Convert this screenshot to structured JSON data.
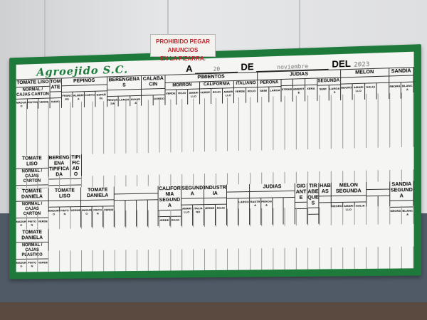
{
  "sign": {
    "line1": "PROHIBIDO PEGAR ANUNCIOS",
    "line2": "EN LA PIZARRA."
  },
  "board": {
    "brand": "Agroejido S.C.",
    "date": {
      "a": "A",
      "day": "20",
      "de": "DE",
      "month": "noviembre",
      "del": "DEL",
      "year": "2023"
    },
    "frame_color": "#1d7a3a",
    "top_header": [
      {
        "label": "TOMATE LISO",
        "cols": [
          {
            "label": "NORMAL / CAJAS CARTON",
            "sub": [
              "MADURO",
              "PINTON",
              "VERDE"
            ]
          }
        ]
      },
      {
        "label": "TOMATE",
        "cols": [
          {
            "label": "",
            "sub": [
              "RAMO"
            ]
          }
        ]
      },
      {
        "label": "PEPINOS",
        "cols": [
          {
            "label": "",
            "sub": [
              "FRANCES",
              "ALMERIA",
              "CORTO",
              "ESPAÑOL"
            ]
          }
        ]
      },
      {
        "label": "BERENGENAS",
        "cols": [
          {
            "label": "",
            "sub": [
              "REDONDA",
              "LARGA",
              "RAYADA"
            ]
          }
        ]
      },
      {
        "label": "CALABACIN",
        "cols": [
          {
            "label": "",
            "sub": [
              "",
              "GORDO"
            ]
          }
        ]
      },
      {
        "label": "PIMIENTOS",
        "cols": [
          {
            "label": "MORRON",
            "sub": [
              "VERDE",
              "ROJO",
              "AMARILLO"
            ]
          },
          {
            "label": "CALIFORNIA",
            "sub": [
              "VERDE",
              "ROJO",
              "AMARILLO"
            ]
          },
          {
            "label": "ITALIANO",
            "sub": [
              "VERDE",
              "ROJO"
            ]
          }
        ]
      },
      {
        "label": "JUDIAS",
        "cols": [
          {
            "label": "PERONA",
            "sub": [
              "SEMI",
              "LARGA"
            ]
          },
          {
            "label": "",
            "sub": [
              "STRIKE"
            ]
          },
          {
            "label": "",
            "sub": [
              "EMERITE"
            ]
          },
          {
            "label": "",
            "sub": [
              "XERA"
            ]
          },
          {
            "label": "SEGUNDA",
            "sub": [
              "SEMI",
              "LARGAS"
            ]
          }
        ]
      },
      {
        "label": "MELON",
        "cols": [
          {
            "label": "",
            "sub": [
              "NEGRO",
              "AMARILLO",
              "GALIA",
              ""
            ]
          }
        ]
      },
      {
        "label": "SANDIA",
        "cols": [
          {
            "label": "",
            "sub": [
              "NEGRA",
              "BLANCA"
            ]
          }
        ]
      }
    ],
    "mid_header": [
      {
        "label": "TOMATE LISO",
        "cols": [
          {
            "label": "NORMAL / CAJAS CARTON",
            "sub": [
              "MADURO",
              "PINTON",
              "VERDE"
            ]
          }
        ]
      },
      {
        "label": "BERENGENA TIPIFICADA",
        "cols": [
          {
            "label": "",
            "sub": [
              "REDONDA",
              "LARGA"
            ]
          }
        ]
      },
      {
        "label": "TIPIFICADO",
        "cols": [
          {
            "label": "",
            "sub": [
              ""
            ]
          }
        ]
      }
    ],
    "bottom_header": [
      {
        "label": "TOMATE DANIELA",
        "cols": [
          {
            "label": "NORMAL / CAJAS CARTON",
            "sub": [
              "MADURO",
              "PINTON",
              "VERDE"
            ]
          }
        ]
      },
      {
        "label": "TOMATE LISO",
        "cols": [
          {
            "label": "",
            "sub": [
              "MADURO",
              "PINTON",
              "VERDE"
            ]
          }
        ]
      },
      {
        "label": "TOMATE DANIELA",
        "cols": [
          {
            "label": "",
            "sub": [
              "MADURO",
              "PINTON",
              "VERDE"
            ]
          }
        ]
      },
      {
        "label": "",
        "cols": [
          {
            "label": "",
            "sub": [
              "",
              "",
              "",
              ""
            ]
          }
        ]
      },
      {
        "label": "CALIFORNIA SEGUNDA",
        "cols": [
          {
            "label": "",
            "sub": [
              "VERDE",
              "ROJO"
            ]
          }
        ]
      },
      {
        "label": "SEGUNDA",
        "cols": [
          {
            "label": "",
            "sub": [
              "AMARILLO",
              "ITALIANO"
            ]
          }
        ]
      },
      {
        "label": "INDUSTRIA",
        "cols": [
          {
            "label": "",
            "sub": [
              "VERDE",
              "ROJO"
            ]
          }
        ]
      },
      {
        "label": "",
        "cols": [
          {
            "label": "",
            "sub": [
              "",
              "LARGO"
            ]
          }
        ]
      },
      {
        "label": "JUDIAS",
        "cols": [
          {
            "label": "",
            "sub": [
              "RASTRA",
              "PERONA",
              "",
              ""
            ]
          }
        ]
      },
      {
        "label": "GIGANTE",
        "cols": [
          {
            "label": "",
            "sub": [
              ""
            ]
          }
        ]
      },
      {
        "label": "TIRABEQUES",
        "cols": [
          {
            "label": "",
            "sub": [
              ""
            ]
          }
        ]
      },
      {
        "label": "HABAS",
        "cols": [
          {
            "label": "",
            "sub": [
              ""
            ]
          }
        ]
      },
      {
        "label": "MELON SEGUNDA",
        "cols": [
          {
            "label": "",
            "sub": [
              "NEGRO",
              "AMARILLO",
              "GALIA"
            ]
          }
        ]
      },
      {
        "label": "",
        "cols": [
          {
            "label": "",
            "sub": [
              "",
              ""
            ]
          }
        ]
      },
      {
        "label": "SANDIA SEGUNDA",
        "cols": [
          {
            "label": "",
            "sub": [
              "NEGRA",
              "BLANCA"
            ]
          }
        ]
      }
    ],
    "lower_header": [
      {
        "label": "TOMATE DANIELA",
        "cols": [
          {
            "label": "NORMAL / CAJAS PLASTICO",
            "sub": [
              "MADURO",
              "PINTON",
              "VERDE"
            ]
          }
        ]
      }
    ]
  }
}
